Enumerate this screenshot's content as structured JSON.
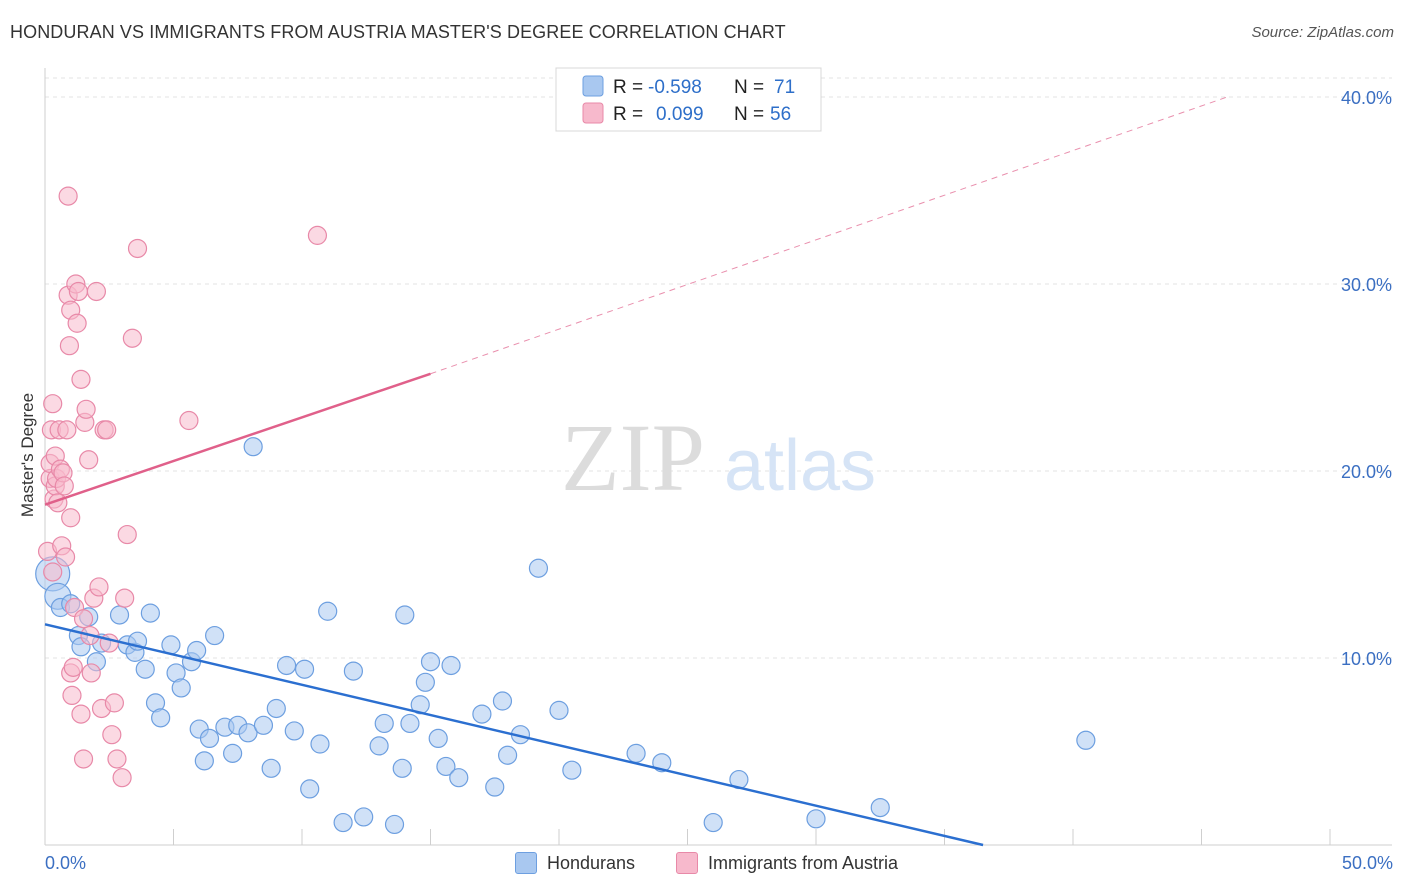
{
  "title": "HONDURAN VS IMMIGRANTS FROM AUSTRIA MASTER'S DEGREE CORRELATION CHART",
  "source": "Source: ZipAtlas.com",
  "watermark": {
    "zip": "ZIP",
    "atlas": "atlas"
  },
  "colors": {
    "blue_fill": "#a9c8f0",
    "blue_stroke": "#6d9fe0",
    "blue_line": "#2b6fd0",
    "pink_fill": "#f7b9cc",
    "pink_stroke": "#e889a8",
    "pink_line": "#e0608a",
    "tick_label": "#3b6fc2"
  },
  "legend_box": {
    "rows": [
      {
        "r_label": "R =",
        "r_value": "-0.598",
        "n_label": "N =",
        "n_value": "71",
        "color": "#a9c8f0"
      },
      {
        "r_label": "R =",
        "r_value": "0.099",
        "n_label": "N =",
        "n_value": "56",
        "color": "#f7b9cc"
      }
    ]
  },
  "bottom_legend": [
    {
      "label": "Hondurans",
      "color": "#a9c8f0"
    },
    {
      "label": "Immigrants from Austria",
      "color": "#f7b9cc"
    }
  ],
  "chart_data": {
    "type": "scatter",
    "title": "HONDURAN VS IMMIGRANTS FROM AUSTRIA MASTER'S DEGREE CORRELATION CHART",
    "xlabel": "",
    "ylabel": "Master's Degree",
    "xlim": [
      0,
      50
    ],
    "ylim": [
      0,
      40
    ],
    "x_tick_labels": [
      "0.0%",
      "50.0%"
    ],
    "y_ticks": [
      10,
      20,
      30,
      40
    ],
    "y_tick_labels": [
      "10.0%",
      "20.0%",
      "30.0%",
      "40.0%"
    ],
    "grid": true,
    "series": [
      {
        "name": "Hondurans",
        "R": -0.598,
        "N": 71,
        "trend": {
          "x": [
            0,
            36.5
          ],
          "y": [
            11.8,
            0.0
          ]
        },
        "points": [
          [
            0.3,
            14.5
          ],
          [
            0.5,
            13.3
          ],
          [
            0.6,
            12.7
          ],
          [
            1.0,
            12.9
          ],
          [
            1.3,
            11.2
          ],
          [
            1.7,
            12.2
          ],
          [
            2.0,
            9.8
          ],
          [
            2.2,
            10.8
          ],
          [
            1.4,
            10.6
          ],
          [
            2.9,
            12.3
          ],
          [
            3.2,
            10.7
          ],
          [
            3.5,
            10.3
          ],
          [
            3.6,
            10.9
          ],
          [
            3.9,
            9.4
          ],
          [
            4.1,
            12.4
          ],
          [
            4.3,
            7.6
          ],
          [
            4.5,
            6.8
          ],
          [
            4.9,
            10.7
          ],
          [
            5.1,
            9.2
          ],
          [
            5.3,
            8.4
          ],
          [
            5.7,
            9.8
          ],
          [
            5.9,
            10.4
          ],
          [
            6.0,
            6.2
          ],
          [
            6.2,
            4.5
          ],
          [
            6.4,
            5.7
          ],
          [
            6.6,
            11.2
          ],
          [
            7.0,
            6.3
          ],
          [
            7.3,
            4.9
          ],
          [
            7.5,
            6.4
          ],
          [
            7.9,
            6.0
          ],
          [
            8.1,
            21.3
          ],
          [
            8.5,
            6.4
          ],
          [
            8.8,
            4.1
          ],
          [
            9.0,
            7.3
          ],
          [
            9.4,
            9.6
          ],
          [
            9.7,
            6.1
          ],
          [
            10.1,
            9.4
          ],
          [
            10.3,
            3.0
          ],
          [
            10.7,
            5.4
          ],
          [
            11.0,
            12.5
          ],
          [
            11.6,
            1.2
          ],
          [
            12.0,
            9.3
          ],
          [
            12.4,
            1.5
          ],
          [
            13.0,
            5.3
          ],
          [
            13.2,
            6.5
          ],
          [
            13.6,
            1.1
          ],
          [
            13.9,
            4.1
          ],
          [
            14.0,
            12.3
          ],
          [
            14.2,
            6.5
          ],
          [
            14.6,
            7.5
          ],
          [
            14.8,
            8.7
          ],
          [
            15.0,
            9.8
          ],
          [
            15.3,
            5.7
          ],
          [
            15.6,
            4.2
          ],
          [
            15.8,
            9.6
          ],
          [
            16.1,
            3.6
          ],
          [
            17.0,
            7.0
          ],
          [
            17.5,
            3.1
          ],
          [
            17.8,
            7.7
          ],
          [
            18.0,
            4.8
          ],
          [
            18.5,
            5.9
          ],
          [
            19.2,
            14.8
          ],
          [
            20.0,
            7.2
          ],
          [
            20.5,
            4.0
          ],
          [
            23.0,
            4.9
          ],
          [
            24.0,
            4.4
          ],
          [
            26.0,
            1.2
          ],
          [
            27.0,
            3.5
          ],
          [
            30.0,
            1.4
          ],
          [
            32.5,
            2.0
          ],
          [
            40.5,
            5.6
          ]
        ]
      },
      {
        "name": "Immigrants from Austria",
        "R": 0.099,
        "N": 56,
        "trend": {
          "x": [
            0,
            15.0
          ],
          "y": [
            18.2,
            25.2
          ]
        },
        "trend_dashed": {
          "x": [
            15.0,
            46.0
          ],
          "y": [
            25.2,
            40.0
          ]
        },
        "points": [
          [
            0.1,
            15.7
          ],
          [
            0.2,
            19.6
          ],
          [
            0.2,
            20.4
          ],
          [
            0.25,
            22.2
          ],
          [
            0.3,
            23.6
          ],
          [
            0.35,
            18.5
          ],
          [
            0.4,
            19.2
          ],
          [
            0.4,
            20.8
          ],
          [
            0.45,
            19.6
          ],
          [
            0.5,
            18.3
          ],
          [
            0.55,
            22.2
          ],
          [
            0.6,
            20.1
          ],
          [
            0.65,
            16.0
          ],
          [
            0.7,
            19.9
          ],
          [
            0.75,
            19.2
          ],
          [
            0.8,
            15.4
          ],
          [
            0.85,
            22.2
          ],
          [
            0.9,
            34.7
          ],
          [
            0.9,
            29.4
          ],
          [
            0.95,
            26.7
          ],
          [
            1.0,
            28.6
          ],
          [
            1.0,
            17.5
          ],
          [
            1.0,
            9.2
          ],
          [
            1.05,
            8.0
          ],
          [
            1.1,
            9.5
          ],
          [
            1.15,
            12.7
          ],
          [
            1.2,
            30.0
          ],
          [
            1.25,
            27.9
          ],
          [
            1.3,
            29.6
          ],
          [
            1.4,
            24.9
          ],
          [
            1.4,
            7.0
          ],
          [
            1.5,
            12.1
          ],
          [
            1.5,
            4.6
          ],
          [
            1.55,
            22.6
          ],
          [
            1.6,
            23.3
          ],
          [
            1.7,
            20.6
          ],
          [
            1.75,
            11.2
          ],
          [
            1.8,
            9.2
          ],
          [
            1.9,
            13.2
          ],
          [
            2.0,
            29.6
          ],
          [
            2.1,
            13.8
          ],
          [
            2.2,
            7.3
          ],
          [
            2.3,
            22.2
          ],
          [
            2.4,
            22.2
          ],
          [
            2.5,
            10.8
          ],
          [
            2.6,
            5.9
          ],
          [
            2.7,
            7.6
          ],
          [
            2.8,
            4.6
          ],
          [
            3.0,
            3.6
          ],
          [
            3.1,
            13.2
          ],
          [
            3.2,
            16.6
          ],
          [
            3.4,
            27.1
          ],
          [
            3.6,
            31.9
          ],
          [
            5.6,
            22.7
          ],
          [
            10.6,
            32.6
          ],
          [
            0.3,
            14.6
          ]
        ]
      }
    ]
  }
}
